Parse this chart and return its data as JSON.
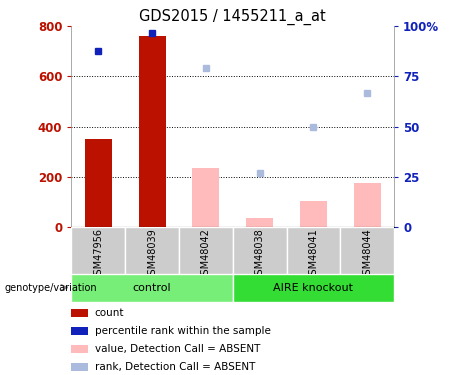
{
  "title": "GDS2015 / 1455211_a_at",
  "samples": [
    "GSM47956",
    "GSM48039",
    "GSM48042",
    "GSM48038",
    "GSM48041",
    "GSM48044"
  ],
  "bar_values": [
    350,
    760,
    null,
    null,
    null,
    null
  ],
  "bar_absent_values": [
    null,
    null,
    235,
    35,
    105,
    175
  ],
  "rank_present": [
    700,
    775,
    null,
    null,
    null,
    null
  ],
  "rank_absent": [
    null,
    null,
    635,
    215,
    400,
    535
  ],
  "ylim_left": [
    0,
    800
  ],
  "ylim_right": [
    0,
    100
  ],
  "yticks_left": [
    0,
    200,
    400,
    600,
    800
  ],
  "yticks_right": [
    0,
    25,
    50,
    75,
    100
  ],
  "bar_color": "#bb1100",
  "bar_absent_color": "#ffbbbb",
  "rank_color": "#1122bb",
  "rank_absent_color": "#aabbdd",
  "grid_color": "#000000",
  "control_color": "#77ee77",
  "knockout_color": "#33dd33",
  "group_bg": "#cccccc",
  "control_samples": [
    0,
    1,
    2
  ],
  "knockout_samples": [
    3,
    4,
    5
  ],
  "legend_items": [
    {
      "label": "count",
      "color": "#bb1100"
    },
    {
      "label": "percentile rank within the sample",
      "color": "#1122bb"
    },
    {
      "label": "value, Detection Call = ABSENT",
      "color": "#ffbbbb"
    },
    {
      "label": "rank, Detection Call = ABSENT",
      "color": "#aabbdd"
    }
  ]
}
